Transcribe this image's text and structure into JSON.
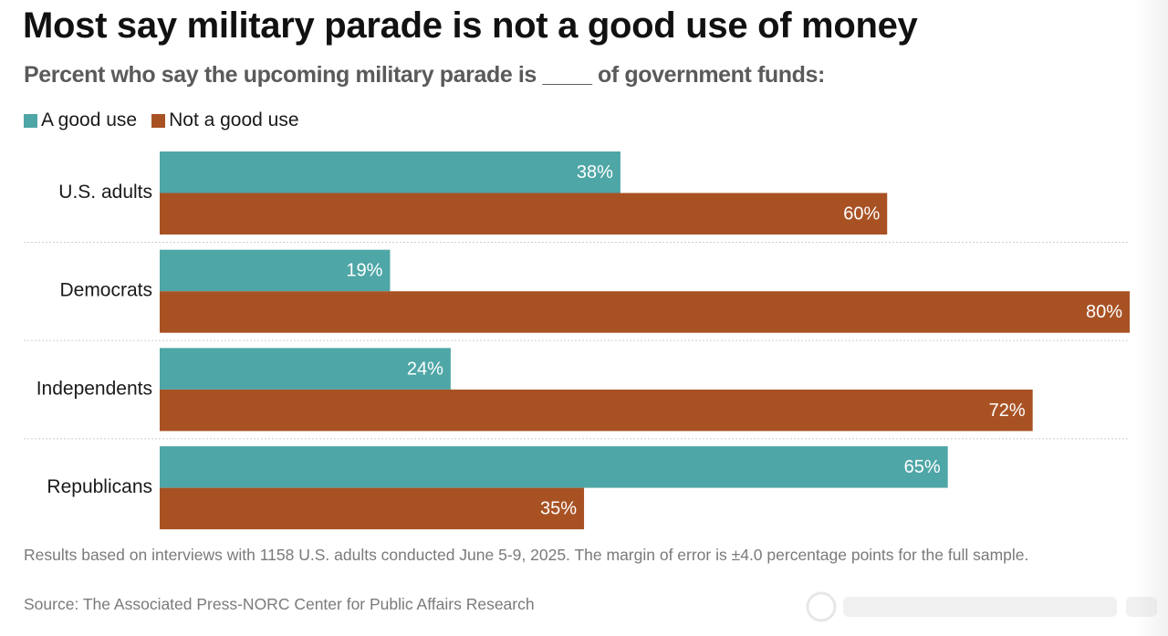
{
  "title": "Most say military parade is not a good use of money",
  "subtitle": "Percent who say the upcoming military parade is ____ of government funds:",
  "legend": {
    "items": [
      {
        "label": "A good use",
        "color": "#4fa6a6"
      },
      {
        "label": "Not a good use",
        "color": "#a85224"
      }
    ]
  },
  "chart_data": {
    "type": "bar",
    "orientation": "horizontal",
    "categories": [
      "U.S. adults",
      "Democrats",
      "Independents",
      "Republicans"
    ],
    "series": [
      {
        "name": "A good use",
        "color": "#4fa6a6",
        "values": [
          38,
          19,
          24,
          65
        ]
      },
      {
        "name": "Not a good use",
        "color": "#a85224",
        "values": [
          60,
          80,
          72,
          35
        ]
      }
    ],
    "value_suffix": "%",
    "xlim": [
      0,
      80
    ],
    "grid": false,
    "legend_position": "top-left"
  },
  "footer": {
    "note": "Results based on interviews with 1158 U.S. adults conducted June 5-9, 2025. The margin of error is ±4.0 percentage points for the full sample.",
    "source": "Source: The Associated Press-NORC Center for Public Affairs Research"
  }
}
